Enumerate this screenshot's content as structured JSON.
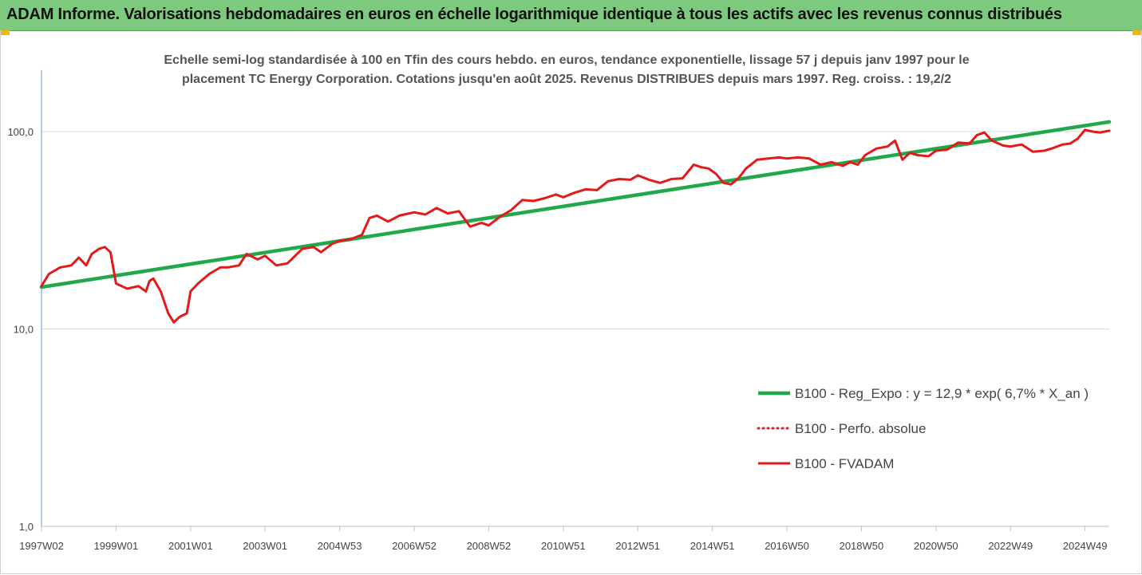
{
  "header": {
    "title": "ADAM Informe. Valorisations hebdomadaires en euros en échelle logarithmique identique à tous les actifs avec les revenus connus distribués",
    "background": "#7dc97d",
    "corner_color": "#f2b705"
  },
  "chart_data": {
    "type": "line",
    "title_line1": "Echelle semi-log standardisée à 100 en Tfin des cours hebdo. en euros, tendance exponentielle, lissage 57 j depuis janv 1997 pour le",
    "title_line2": "placement TC Energy Corporation. Cotations jusqu'en août 2025. Revenus DISTRIBUES depuis mars 1997. Reg. croiss. : 19,2/2",
    "y_scale": "log",
    "ylim": [
      1,
      200
    ],
    "y_ticks": [
      "100,0",
      "10,0",
      "1,0"
    ],
    "y_tick_values": [
      100,
      10,
      1
    ],
    "x_range": [
      1997.0,
      2025.65
    ],
    "x_tick_labels": [
      "1997W02",
      "1999W01",
      "2001W01",
      "2003W01",
      "2004W53",
      "2006W52",
      "2008W52",
      "2010W51",
      "2012W51",
      "2014W51",
      "2016W50",
      "2018W50",
      "2020W50",
      "2022W49",
      "2024W49"
    ],
    "x_tick_values": [
      1997.0,
      1999.0,
      2001.0,
      2003.0,
      2005.0,
      2007.0,
      2009.0,
      2011.0,
      2013.0,
      2015.0,
      2017.0,
      2019.0,
      2021.0,
      2023.0,
      2025.0
    ],
    "grid": "horizontal",
    "legend_position": "bottom-right",
    "series": [
      {
        "name": "B100 - Reg_Expo : y = 12,9 * exp( 6,7% *  X_an )",
        "color": "#21a84a",
        "style": "solid",
        "x": [
          1997.0,
          2025.65
        ],
        "y": [
          16.3,
          112
        ]
      },
      {
        "name": "B100 - Perfo. absolue",
        "color": "#e41a1a",
        "style": "dotted",
        "x": [],
        "y": []
      },
      {
        "name": "B100 - FVADAM",
        "color": "#e41a1a",
        "style": "solid",
        "x": [
          1997.0,
          1997.2,
          1997.5,
          1997.8,
          1998.0,
          1998.2,
          1998.35,
          1998.55,
          1998.7,
          1998.85,
          1999.0,
          1999.3,
          1999.6,
          1999.8,
          1999.9,
          2000.0,
          2000.2,
          2000.4,
          2000.55,
          2000.7,
          2000.9,
          2001.0,
          2001.2,
          2001.5,
          2001.8,
          2002.0,
          2002.3,
          2002.5,
          2002.8,
          2003.0,
          2003.3,
          2003.6,
          2004.0,
          2004.3,
          2004.5,
          2004.8,
          2005.0,
          2005.3,
          2005.6,
          2005.8,
          2006.0,
          2006.3,
          2006.6,
          2007.0,
          2007.3,
          2007.6,
          2007.9,
          2008.2,
          2008.5,
          2008.8,
          2009.0,
          2009.3,
          2009.6,
          2009.9,
          2010.2,
          2010.5,
          2010.8,
          2011.0,
          2011.3,
          2011.6,
          2011.9,
          2012.2,
          2012.5,
          2012.8,
          2013.0,
          2013.3,
          2013.6,
          2013.9,
          2014.2,
          2014.5,
          2014.7,
          2014.9,
          2015.1,
          2015.3,
          2015.5,
          2015.7,
          2015.9,
          2016.2,
          2016.5,
          2016.8,
          2017.0,
          2017.3,
          2017.6,
          2017.9,
          2018.2,
          2018.5,
          2018.7,
          2018.9,
          2019.1,
          2019.4,
          2019.7,
          2019.9,
          2020.1,
          2020.3,
          2020.5,
          2020.8,
          2021.0,
          2021.3,
          2021.6,
          2021.9,
          2022.1,
          2022.3,
          2022.5,
          2022.8,
          2023.0,
          2023.3,
          2023.6,
          2023.9,
          2024.1,
          2024.4,
          2024.6,
          2024.8,
          2025.0,
          2025.2,
          2025.4,
          2025.65
        ],
        "y": [
          16.5,
          19,
          20.5,
          21,
          23,
          21,
          24,
          25.5,
          26,
          24.5,
          17,
          16,
          16.5,
          15.5,
          17.5,
          18,
          15.5,
          12,
          10.8,
          11.5,
          12,
          15.5,
          17,
          19,
          20.5,
          20.5,
          21,
          24,
          22.5,
          23.5,
          21,
          21.5,
          25.5,
          26,
          24.5,
          27,
          28,
          28.5,
          30,
          36.5,
          37.5,
          35,
          37.5,
          39,
          38,
          41,
          38.5,
          39.5,
          33,
          34.5,
          33.5,
          37,
          40,
          45,
          44.5,
          46,
          48,
          46.5,
          49,
          51,
          50.5,
          56,
          57.5,
          57,
          60,
          57,
          55,
          57.5,
          58,
          68,
          66,
          65,
          61,
          55,
          54,
          58,
          65,
          72,
          73,
          74,
          73,
          74,
          73,
          68,
          70,
          67,
          70,
          68,
          76,
          82,
          84,
          90,
          72,
          78,
          76,
          75,
          80,
          81,
          88,
          87,
          96,
          99,
          90,
          85,
          84,
          86,
          79,
          80,
          82,
          86,
          87,
          92,
          102,
          100,
          99,
          101
        ]
      }
    ]
  }
}
